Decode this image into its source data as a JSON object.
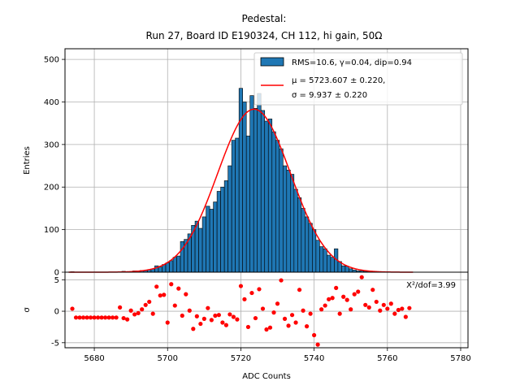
{
  "chart_data": [
    {
      "type": "bar",
      "title_line1": "Pedestal:",
      "title_line2": "Run 27, Board ID E190324, CH 112, hi gain, 50Ω",
      "ylabel": "Entries",
      "xlim": [
        5672,
        5782
      ],
      "ylim": [
        0,
        525
      ],
      "yticks": [
        0,
        100,
        200,
        300,
        400,
        500
      ],
      "grid": true,
      "legend_position": "top-right",
      "histogram_label": "RMS=10.6, γ=0.04, dip=0.94",
      "fit_label_line1": "μ = 5723.607 ± 0.220,",
      "fit_label_line2": "σ = 9.937 ± 0.220",
      "bar_color": "#1f77b4",
      "fit_color": "#ff0000",
      "bin_width": 1,
      "bins": [
        [
          5674,
          1
        ],
        [
          5675,
          0
        ],
        [
          5676,
          0
        ],
        [
          5677,
          0
        ],
        [
          5678,
          0
        ],
        [
          5679,
          0
        ],
        [
          5680,
          0
        ],
        [
          5681,
          0
        ],
        [
          5682,
          0
        ],
        [
          5683,
          0
        ],
        [
          5684,
          0
        ],
        [
          5685,
          0
        ],
        [
          5686,
          0
        ],
        [
          5687,
          0
        ],
        [
          5688,
          2
        ],
        [
          5689,
          1
        ],
        [
          5690,
          1
        ],
        [
          5691,
          3
        ],
        [
          5692,
          3
        ],
        [
          5693,
          4
        ],
        [
          5694,
          4
        ],
        [
          5695,
          6
        ],
        [
          5696,
          8
        ],
        [
          5697,
          15
        ],
        [
          5698,
          12
        ],
        [
          5699,
          18
        ],
        [
          5700,
          22
        ],
        [
          5701,
          27
        ],
        [
          5702,
          35
        ],
        [
          5703,
          38
        ],
        [
          5704,
          72
        ],
        [
          5705,
          77
        ],
        [
          5706,
          90
        ],
        [
          5707,
          110
        ],
        [
          5708,
          120
        ],
        [
          5709,
          103
        ],
        [
          5710,
          130
        ],
        [
          5711,
          155
        ],
        [
          5712,
          148
        ],
        [
          5713,
          165
        ],
        [
          5714,
          190
        ],
        [
          5715,
          200
        ],
        [
          5716,
          215
        ],
        [
          5717,
          250
        ],
        [
          5718,
          310
        ],
        [
          5719,
          315
        ],
        [
          5720,
          432
        ],
        [
          5721,
          400
        ],
        [
          5722,
          320
        ],
        [
          5723,
          415
        ],
        [
          5724,
          385
        ],
        [
          5725,
          420
        ],
        [
          5726,
          380
        ],
        [
          5727,
          355
        ],
        [
          5728,
          360
        ],
        [
          5729,
          330
        ],
        [
          5730,
          310
        ],
        [
          5731,
          290
        ],
        [
          5732,
          250
        ],
        [
          5733,
          240
        ],
        [
          5734,
          230
        ],
        [
          5735,
          195
        ],
        [
          5736,
          175
        ],
        [
          5737,
          150
        ],
        [
          5738,
          130
        ],
        [
          5739,
          115
        ],
        [
          5740,
          100
        ],
        [
          5741,
          75
        ],
        [
          5742,
          60
        ],
        [
          5743,
          55
        ],
        [
          5744,
          40
        ],
        [
          5745,
          35
        ],
        [
          5746,
          55
        ],
        [
          5747,
          25
        ],
        [
          5748,
          15
        ],
        [
          5749,
          14
        ],
        [
          5750,
          8
        ],
        [
          5751,
          5
        ],
        [
          5752,
          3
        ],
        [
          5753,
          3
        ],
        [
          5754,
          2
        ],
        [
          5755,
          1
        ],
        [
          5756,
          1
        ],
        [
          5757,
          1
        ],
        [
          5758,
          0
        ],
        [
          5759,
          0
        ],
        [
          5760,
          0
        ],
        [
          5761,
          0
        ],
        [
          5762,
          0
        ],
        [
          5763,
          0
        ],
        [
          5764,
          0
        ],
        [
          5765,
          0
        ],
        [
          5766,
          0
        ]
      ],
      "fit": {
        "amplitude": 383,
        "mu": 5723.607,
        "sigma": 9.937,
        "x_range": [
          5673,
          5767
        ]
      }
    },
    {
      "type": "scatter",
      "ylabel": "σ",
      "xlabel": "ADC Counts",
      "xlim": [
        5672,
        5782
      ],
      "ylim": [
        -5.8,
        6.2
      ],
      "xticks": [
        5680,
        5700,
        5720,
        5740,
        5760,
        5780
      ],
      "yticks": [
        -5,
        0,
        5
      ],
      "grid": true,
      "annotation": "Χ²/dof=3.99",
      "point_color": "#ff0000",
      "x": [
        5674,
        5675,
        5676,
        5677,
        5678,
        5679,
        5680,
        5681,
        5682,
        5683,
        5684,
        5685,
        5686,
        5687,
        5688,
        5689,
        5690,
        5691,
        5692,
        5693,
        5694,
        5695,
        5696,
        5697,
        5698,
        5699,
        5700,
        5701,
        5702,
        5703,
        5704,
        5705,
        5706,
        5707,
        5708,
        5709,
        5710,
        5711,
        5712,
        5713,
        5714,
        5715,
        5716,
        5717,
        5718,
        5719,
        5720,
        5721,
        5722,
        5723,
        5724,
        5725,
        5726,
        5727,
        5728,
        5729,
        5730,
        5731,
        5732,
        5733,
        5734,
        5735,
        5736,
        5737,
        5738,
        5739,
        5740,
        5741,
        5742,
        5743,
        5744,
        5745,
        5746,
        5747,
        5748,
        5749,
        5750,
        5751,
        5752,
        5753,
        5754,
        5755,
        5756,
        5757,
        5758,
        5759,
        5760,
        5761,
        5762,
        5763,
        5764,
        5765,
        5766
      ],
      "y": [
        0.4,
        -1.0,
        -1.0,
        -1.0,
        -1.0,
        -1.0,
        -1.0,
        -1.0,
        -1.0,
        -1.0,
        -1.0,
        -1.0,
        -1.0,
        0.6,
        -1.1,
        -1.3,
        0.1,
        -0.5,
        -0.3,
        0.3,
        1.0,
        1.5,
        -0.4,
        3.9,
        2.5,
        2.6,
        -1.8,
        4.3,
        0.9,
        3.6,
        -0.7,
        2.7,
        0.1,
        -2.8,
        -0.8,
        -2.0,
        -1.2,
        0.5,
        -1.4,
        -0.7,
        -0.6,
        -1.8,
        -2.2,
        -0.5,
        -0.9,
        -1.3,
        4.0,
        1.9,
        -2.5,
        2.9,
        -1.1,
        3.5,
        0.4,
        -2.9,
        -2.6,
        -0.2,
        1.2,
        4.9,
        -1.2,
        -2.3,
        -0.6,
        -1.8,
        3.4,
        0.1,
        -2.4,
        -0.4,
        -3.8,
        -5.3,
        0.3,
        0.9,
        1.9,
        2.1,
        3.7,
        -0.4,
        2.3,
        1.8,
        0.3,
        2.7,
        3.1,
        5.4,
        1.0,
        0.6,
        3.4,
        1.5,
        0.1,
        1.0,
        0.4,
        1.2,
        -0.4,
        0.2,
        0.4,
        -0.9,
        0.5
      ]
    }
  ]
}
